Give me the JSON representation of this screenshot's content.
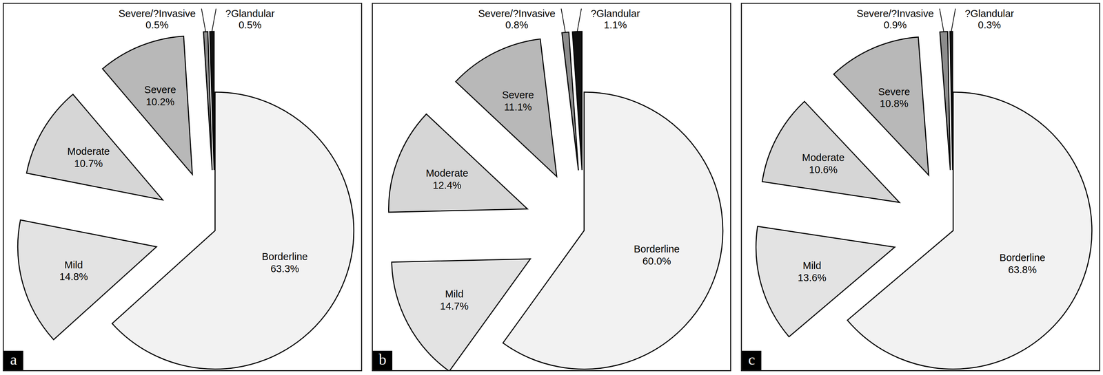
{
  "chart_data": [
    {
      "type": "pie",
      "title": "a",
      "categories": [
        "Borderline",
        "Mild",
        "Moderate",
        "Severe",
        "Severe/?Invasive",
        "?Glandular"
      ],
      "values": [
        63.3,
        14.8,
        10.7,
        10.2,
        0.5,
        0.5
      ],
      "value_labels": [
        "63.3%",
        "14.8%",
        "10.7%",
        "10.2%",
        "0.5%",
        "0.5%"
      ],
      "colors": [
        "#f2f2f2",
        "#e3e3e3",
        "#d6d6d6",
        "#b8b8b8",
        "#8c8c8c",
        "#111111"
      ],
      "data_labels": true
    },
    {
      "type": "pie",
      "title": "b",
      "categories": [
        "Borderline",
        "Mild",
        "Moderate",
        "Severe",
        "Severe/?Invasive",
        "?Glandular"
      ],
      "values": [
        60.0,
        14.7,
        12.4,
        11.1,
        0.8,
        1.1
      ],
      "value_labels": [
        "60.0%",
        "14.7%",
        "12.4%",
        "11.1%",
        "0.8%",
        "1.1%"
      ],
      "colors": [
        "#f2f2f2",
        "#e3e3e3",
        "#d6d6d6",
        "#b8b8b8",
        "#8c8c8c",
        "#111111"
      ],
      "data_labels": true
    },
    {
      "type": "pie",
      "title": "c",
      "categories": [
        "Borderline",
        "Mild",
        "Moderate",
        "Severe",
        "Severe/?Invasive",
        "?Glandular"
      ],
      "values": [
        63.8,
        13.6,
        10.6,
        10.8,
        0.9,
        0.3
      ],
      "value_labels": [
        "63.8%",
        "13.6%",
        "10.6%",
        "10.8%",
        "0.9%",
        "0.3%"
      ],
      "colors": [
        "#f2f2f2",
        "#e3e3e3",
        "#d6d6d6",
        "#b8b8b8",
        "#8c8c8c",
        "#111111"
      ],
      "data_labels": true
    }
  ]
}
